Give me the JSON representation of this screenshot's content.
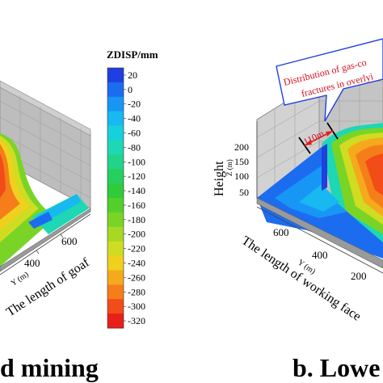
{
  "left_panel": {
    "caption": "d mining",
    "axis_y_label": "Y (m)",
    "axis_label": "The length of goaf",
    "y_ticks": [
      "600",
      "400"
    ]
  },
  "right_panel": {
    "caption": "b.  Lowe",
    "height_label": "Height",
    "z_label": "Z (m)",
    "z_ticks": [
      "200",
      "150",
      "100",
      "50"
    ],
    "axis_y_label": "Y (m)",
    "axis_label": "The length of working face",
    "y_ticks": [
      "600",
      "400",
      "200"
    ],
    "annotation_line1": "Distribution of gas-co",
    "annotation_line2": "fractures in overlyi",
    "dimension_label": "110m"
  },
  "colorbar": {
    "title": "ZDISP/mm",
    "levels": [
      "20",
      "0",
      "-20",
      "-40",
      "-60",
      "-80",
      "-100",
      "-120",
      "-140",
      "-160",
      "-180",
      "-200",
      "-220",
      "-240",
      "-260",
      "-280",
      "-300",
      "-320"
    ],
    "colors": [
      "#1f3fe0",
      "#1c6cf0",
      "#1896f5",
      "#18b8f0",
      "#17d0dd",
      "#1ed7b4",
      "#22d48a",
      "#27cf5f",
      "#2fcb3b",
      "#52cf2b",
      "#7ad426",
      "#a6d824",
      "#d0dc22",
      "#f0d01e",
      "#f4aa1c",
      "#f57e1a",
      "#f24c18",
      "#e8201a"
    ]
  }
}
